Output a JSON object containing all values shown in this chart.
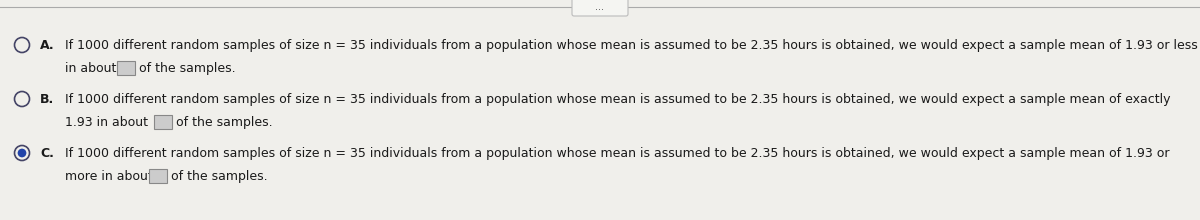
{
  "background_color": "#f0efeb",
  "top_line_color": "#aaaaaa",
  "text_color": "#1a1a1a",
  "radio_color": "#444466",
  "radio_fill_selected": "#2244aa",
  "option_A": {
    "label": "A.",
    "radio_selected": false,
    "line1": "If 1000 different random samples of size n = 35 individuals from a population whose mean is assumed to be 2.35 hours is obtained, we would expect a sample mean of 1.93 or less",
    "line2": "in about",
    "line2_suffix": "of the samples."
  },
  "option_B": {
    "label": "B.",
    "radio_selected": false,
    "line1": "If 1000 different random samples of size n = 35 individuals from a population whose mean is assumed to be 2.35 hours is obtained, we would expect a sample mean of exactly",
    "line2": "1.93 in about",
    "line2_suffix": "of the samples."
  },
  "option_C": {
    "label": "C.",
    "radio_selected": true,
    "line1": "If 1000 different random samples of size n = 35 individuals from a population whose mean is assumed to be 2.35 hours is obtained, we would expect a sample mean of 1.93 or",
    "line2": "more in about",
    "line2_suffix": "of the samples."
  },
  "font_size": 9.0,
  "dots_text": "..."
}
